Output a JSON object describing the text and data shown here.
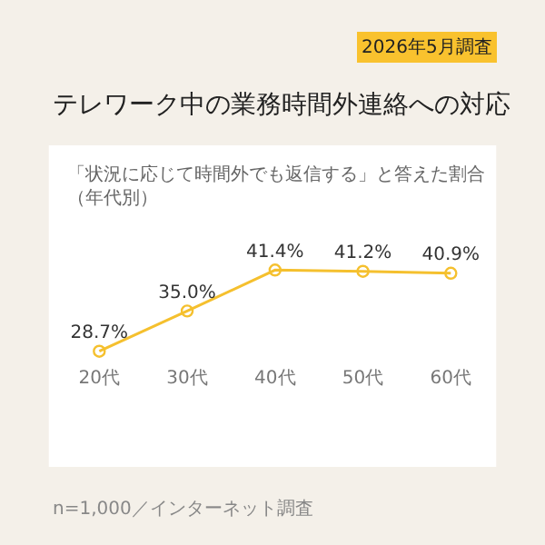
{
  "chart_data": {
    "type": "line",
    "title": "テレワーク中の業務時間外連絡への対応",
    "subtitle": "「状況に応じて時間外でも返信する」と答えた割合（年代別）",
    "annotations": [
      "2026年5月調査",
      "n=1,000／インターネット調査"
    ],
    "categories": [
      "20代",
      "30代",
      "40代",
      "50代",
      "60代"
    ],
    "series": [
      {
        "color": "#f5c02e",
        "values": [
          28.7,
          35.0,
          41.4,
          41.2,
          40.9
        ],
        "value_labels": [
          "28.7%",
          "35.0%",
          "41.4%",
          "41.2%",
          "40.9%"
        ]
      }
    ],
    "marker": "circle",
    "line_style": "solid",
    "tick_labels": "x"
  }
}
